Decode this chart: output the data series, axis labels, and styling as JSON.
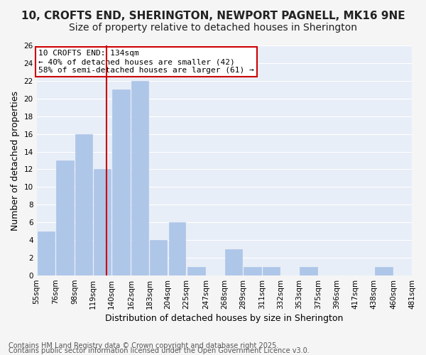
{
  "title1": "10, CROFTS END, SHERINGTON, NEWPORT PAGNELL, MK16 9NE",
  "title2": "Size of property relative to detached houses in Sherington",
  "xlabel": "Distribution of detached houses by size in Sherington",
  "ylabel": "Number of detached properties",
  "bin_labels": [
    "55sqm",
    "76sqm",
    "98sqm",
    "119sqm",
    "140sqm",
    "162sqm",
    "183sqm",
    "204sqm",
    "225sqm",
    "247sqm",
    "268sqm",
    "289sqm",
    "311sqm",
    "332sqm",
    "353sqm",
    "375sqm",
    "396sqm",
    "417sqm",
    "438sqm",
    "460sqm",
    "481sqm"
  ],
  "bin_edges": [
    55,
    76,
    98,
    119,
    140,
    162,
    183,
    204,
    225,
    247,
    268,
    289,
    311,
    332,
    353,
    375,
    396,
    417,
    438,
    460,
    481
  ],
  "bar_heights": [
    5,
    13,
    16,
    12,
    21,
    22,
    4,
    6,
    1,
    0,
    3,
    1,
    1,
    0,
    1,
    0,
    0,
    0,
    1,
    0
  ],
  "bar_color": "#aec6e8",
  "bar_edgecolor": "#aec6e8",
  "subject_value": 134,
  "vline_color": "#cc0000",
  "annotation_title": "10 CROFTS END: 134sqm",
  "annotation_line1": "← 40% of detached houses are smaller (42)",
  "annotation_line2": "58% of semi-detached houses are larger (61) →",
  "annotation_box_color": "#ffffff",
  "annotation_box_edgecolor": "#cc0000",
  "ylim": [
    0,
    26
  ],
  "yticks": [
    0,
    2,
    4,
    6,
    8,
    10,
    12,
    14,
    16,
    18,
    20,
    22,
    24,
    26
  ],
  "background_color": "#e8eef7",
  "grid_color": "#ffffff",
  "footer1": "Contains HM Land Registry data © Crown copyright and database right 2025.",
  "footer2": "Contains public sector information licensed under the Open Government Licence v3.0.",
  "title1_fontsize": 11,
  "title2_fontsize": 10,
  "xlabel_fontsize": 9,
  "ylabel_fontsize": 9,
  "tick_fontsize": 7.5,
  "annotation_fontsize": 8,
  "footer_fontsize": 7
}
